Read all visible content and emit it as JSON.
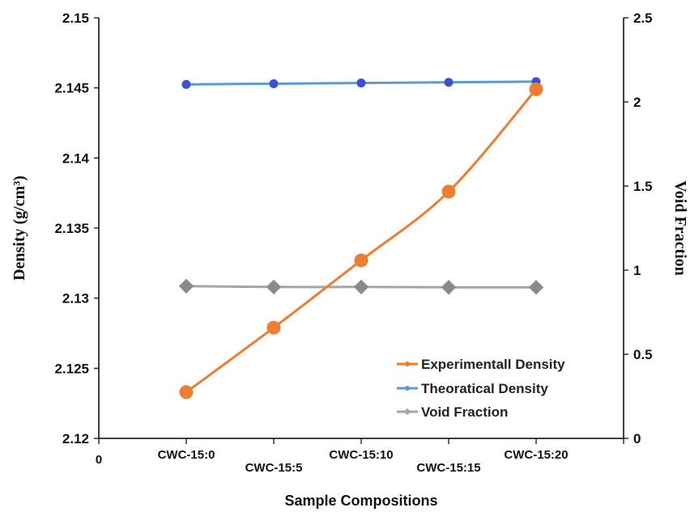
{
  "chart_data": {
    "type": "line",
    "categories": [
      "CWC-15:0",
      "CWC-15:5",
      "CWC-15:10",
      "CWC-15:15",
      "CWC-15:20"
    ],
    "x_origin_label": "0",
    "xlabel": "Sample Compositions",
    "ylabel_left": "Density (g/cm³)",
    "ylabel_right": "Void Fraction",
    "ylim_left": [
      2.12,
      2.15
    ],
    "yticks_left": [
      "2.12",
      "2.125",
      "2.13",
      "2.135",
      "2.14",
      "2.145",
      "2.15"
    ],
    "ylim_right": [
      0,
      2.5
    ],
    "yticks_right": [
      "0",
      "0.5",
      "1",
      "1.5",
      "2",
      "2.5"
    ],
    "grid": false,
    "legend_position": "bottom-right",
    "series": [
      {
        "name": "Experimentall Density",
        "axis": "left",
        "color": "#ED7D31",
        "marker": "circle",
        "values": [
          2.1233,
          2.1279,
          2.1327,
          2.1376,
          2.1449
        ]
      },
      {
        "name": "Theoratical Density",
        "axis": "left",
        "color": "#5B9BD5",
        "marker_color": "#3A4FD6",
        "marker": "circle",
        "values": [
          2.14525,
          2.1453,
          2.14535,
          2.1454,
          2.14545
        ]
      },
      {
        "name": "Void Fraction",
        "axis": "right",
        "color": "#A5A5A5",
        "marker_color": "#8A8A8A",
        "marker": "diamond",
        "values": [
          0.905,
          0.9,
          0.9,
          0.898,
          0.898
        ]
      }
    ]
  }
}
